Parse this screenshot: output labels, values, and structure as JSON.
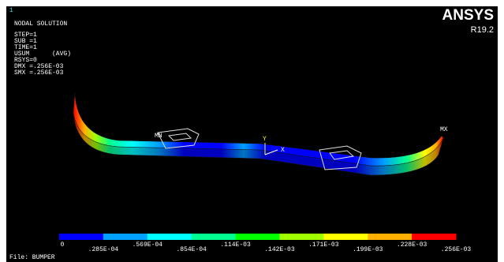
{
  "header": {
    "index": "1",
    "title": "NODAL SOLUTION",
    "lines": [
      "STEP=1",
      "SUB =1",
      "TIME=1",
      "USUM      (AVG)",
      "RSYS=0",
      "DMX =.256E-03",
      "SMX =.256E-03"
    ]
  },
  "brand": {
    "name": "ANSYS",
    "version": "R19.2"
  },
  "model_labels": {
    "min": "MN",
    "max": "MX",
    "axis_y": "Y",
    "axis_x": "X"
  },
  "legend": {
    "colors": [
      "#0000ff",
      "#00a0ff",
      "#00ffff",
      "#00ff90",
      "#00ff00",
      "#a0ff00",
      "#ffff00",
      "#ffb000",
      "#ff0000"
    ],
    "labels": [
      "0",
      ".285E-04",
      ".569E-04",
      ".854E-04",
      ".114E-03",
      ".142E-03",
      ".171E-03",
      ".199E-03",
      ".228E-03",
      ".256E-03"
    ]
  },
  "file": "File: BUMPER"
}
